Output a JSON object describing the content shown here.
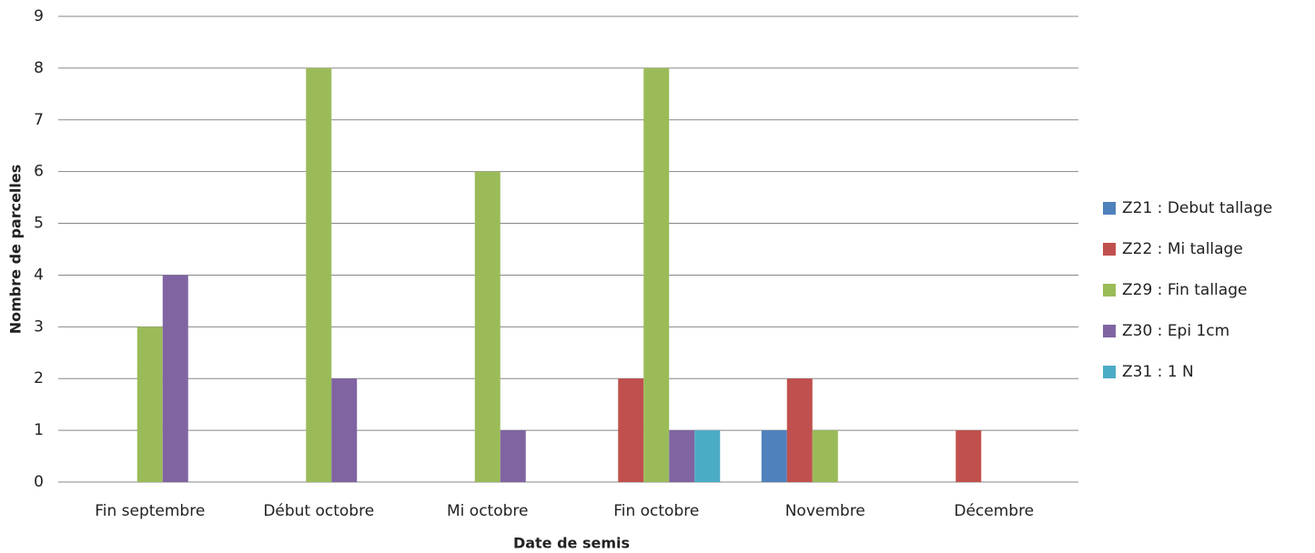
{
  "chart_data": {
    "type": "bar",
    "xlabel": "Date de semis",
    "ylabel": "Nombre de parcelles",
    "categories": [
      "Fin septembre",
      "Début octobre",
      "Mi octobre",
      "Fin octobre",
      "Novembre",
      "Décembre"
    ],
    "series": [
      {
        "name": "Z21 : Debut tallage",
        "color": "#4f81bd",
        "values": [
          0,
          0,
          0,
          0,
          1,
          0
        ]
      },
      {
        "name": "Z22 : Mi tallage",
        "color": "#c0504d",
        "values": [
          0,
          0,
          0,
          2,
          2,
          1
        ]
      },
      {
        "name": "Z29 : Fin tallage",
        "color": "#9bbb59",
        "values": [
          3,
          8,
          6,
          8,
          1,
          0
        ]
      },
      {
        "name": "Z30 : Epi 1cm",
        "color": "#8064a2",
        "values": [
          4,
          2,
          1,
          1,
          0,
          0
        ]
      },
      {
        "name": "Z31 : 1 N",
        "color": "#4bacc6",
        "values": [
          0,
          0,
          0,
          1,
          0,
          0
        ]
      }
    ],
    "ylim": [
      0,
      9
    ],
    "yticks": [
      0,
      1,
      2,
      3,
      4,
      5,
      6,
      7,
      8,
      9
    ],
    "grid": true,
    "legend": "right"
  }
}
